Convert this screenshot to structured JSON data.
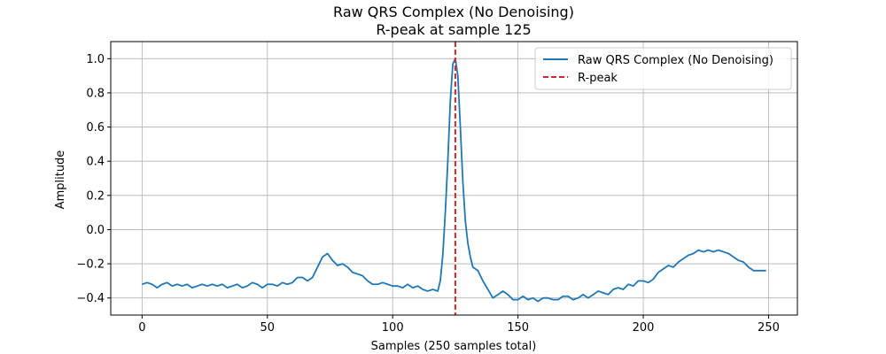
{
  "chart_data": {
    "type": "line",
    "title": "Raw QRS Complex (No Denoising)",
    "subtitle": "R-peak at sample 125",
    "xlabel": "Samples (250 samples total)",
    "ylabel": "Amplitude",
    "xlim": [
      -12.5,
      261.5
    ],
    "ylim": [
      -0.5,
      1.1
    ],
    "xticks": [
      0,
      50,
      100,
      150,
      200,
      250
    ],
    "yticks": [
      -0.4,
      -0.2,
      0.0,
      0.2,
      0.4,
      0.6,
      0.8,
      1.0
    ],
    "ytick_labels": [
      "−0.4",
      "−0.2",
      "0.0",
      "0.2",
      "0.4",
      "0.6",
      "0.8",
      "1.0"
    ],
    "grid": true,
    "legend_position": "top-right",
    "series": [
      {
        "name": "Raw QRS Complex (No Denoising)",
        "color": "#1f77b4",
        "points": [
          [
            0,
            -0.32
          ],
          [
            2,
            -0.31
          ],
          [
            4,
            -0.32
          ],
          [
            6,
            -0.34
          ],
          [
            8,
            -0.32
          ],
          [
            10,
            -0.31
          ],
          [
            12,
            -0.33
          ],
          [
            14,
            -0.32
          ],
          [
            16,
            -0.33
          ],
          [
            18,
            -0.32
          ],
          [
            20,
            -0.34
          ],
          [
            22,
            -0.33
          ],
          [
            24,
            -0.32
          ],
          [
            26,
            -0.33
          ],
          [
            28,
            -0.32
          ],
          [
            30,
            -0.33
          ],
          [
            32,
            -0.32
          ],
          [
            34,
            -0.34
          ],
          [
            36,
            -0.33
          ],
          [
            38,
            -0.32
          ],
          [
            40,
            -0.34
          ],
          [
            42,
            -0.33
          ],
          [
            44,
            -0.31
          ],
          [
            46,
            -0.32
          ],
          [
            48,
            -0.34
          ],
          [
            50,
            -0.32
          ],
          [
            52,
            -0.32
          ],
          [
            54,
            -0.33
          ],
          [
            56,
            -0.31
          ],
          [
            58,
            -0.32
          ],
          [
            60,
            -0.31
          ],
          [
            62,
            -0.28
          ],
          [
            64,
            -0.28
          ],
          [
            66,
            -0.3
          ],
          [
            68,
            -0.28
          ],
          [
            70,
            -0.22
          ],
          [
            72,
            -0.16
          ],
          [
            74,
            -0.14
          ],
          [
            76,
            -0.18
          ],
          [
            78,
            -0.21
          ],
          [
            80,
            -0.2
          ],
          [
            82,
            -0.22
          ],
          [
            84,
            -0.25
          ],
          [
            86,
            -0.26
          ],
          [
            88,
            -0.27
          ],
          [
            90,
            -0.3
          ],
          [
            92,
            -0.32
          ],
          [
            94,
            -0.32
          ],
          [
            96,
            -0.31
          ],
          [
            98,
            -0.32
          ],
          [
            100,
            -0.33
          ],
          [
            102,
            -0.33
          ],
          [
            104,
            -0.34
          ],
          [
            106,
            -0.32
          ],
          [
            108,
            -0.34
          ],
          [
            110,
            -0.33
          ],
          [
            112,
            -0.35
          ],
          [
            114,
            -0.36
          ],
          [
            116,
            -0.35
          ],
          [
            118,
            -0.36
          ],
          [
            119,
            -0.3
          ],
          [
            120,
            -0.15
          ],
          [
            121,
            0.1
          ],
          [
            122,
            0.4
          ],
          [
            123,
            0.75
          ],
          [
            124,
            0.97
          ],
          [
            125,
            1.0
          ],
          [
            126,
            0.9
          ],
          [
            127,
            0.6
          ],
          [
            128,
            0.28
          ],
          [
            129,
            0.05
          ],
          [
            130,
            -0.08
          ],
          [
            131,
            -0.16
          ],
          [
            132,
            -0.22
          ],
          [
            134,
            -0.24
          ],
          [
            136,
            -0.3
          ],
          [
            138,
            -0.35
          ],
          [
            140,
            -0.4
          ],
          [
            142,
            -0.38
          ],
          [
            144,
            -0.36
          ],
          [
            146,
            -0.38
          ],
          [
            148,
            -0.41
          ],
          [
            150,
            -0.41
          ],
          [
            152,
            -0.39
          ],
          [
            154,
            -0.41
          ],
          [
            156,
            -0.4
          ],
          [
            158,
            -0.42
          ],
          [
            160,
            -0.4
          ],
          [
            162,
            -0.4
          ],
          [
            164,
            -0.41
          ],
          [
            166,
            -0.41
          ],
          [
            168,
            -0.39
          ],
          [
            170,
            -0.39
          ],
          [
            172,
            -0.41
          ],
          [
            174,
            -0.4
          ],
          [
            176,
            -0.38
          ],
          [
            178,
            -0.4
          ],
          [
            180,
            -0.38
          ],
          [
            182,
            -0.36
          ],
          [
            184,
            -0.37
          ],
          [
            186,
            -0.38
          ],
          [
            188,
            -0.35
          ],
          [
            190,
            -0.34
          ],
          [
            192,
            -0.35
          ],
          [
            194,
            -0.32
          ],
          [
            196,
            -0.33
          ],
          [
            198,
            -0.3
          ],
          [
            200,
            -0.3
          ],
          [
            202,
            -0.31
          ],
          [
            204,
            -0.29
          ],
          [
            206,
            -0.25
          ],
          [
            208,
            -0.23
          ],
          [
            210,
            -0.21
          ],
          [
            212,
            -0.22
          ],
          [
            214,
            -0.19
          ],
          [
            216,
            -0.17
          ],
          [
            218,
            -0.15
          ],
          [
            220,
            -0.14
          ],
          [
            222,
            -0.12
          ],
          [
            224,
            -0.13
          ],
          [
            226,
            -0.12
          ],
          [
            228,
            -0.13
          ],
          [
            230,
            -0.12
          ],
          [
            232,
            -0.13
          ],
          [
            234,
            -0.14
          ],
          [
            236,
            -0.16
          ],
          [
            238,
            -0.18
          ],
          [
            240,
            -0.19
          ],
          [
            242,
            -0.22
          ],
          [
            244,
            -0.24
          ],
          [
            246,
            -0.24
          ],
          [
            248,
            -0.24
          ],
          [
            249,
            -0.24
          ]
        ]
      }
    ],
    "reference_line": {
      "name": "R-peak",
      "x": 125,
      "color": "#d62728",
      "style": "dashed"
    }
  }
}
